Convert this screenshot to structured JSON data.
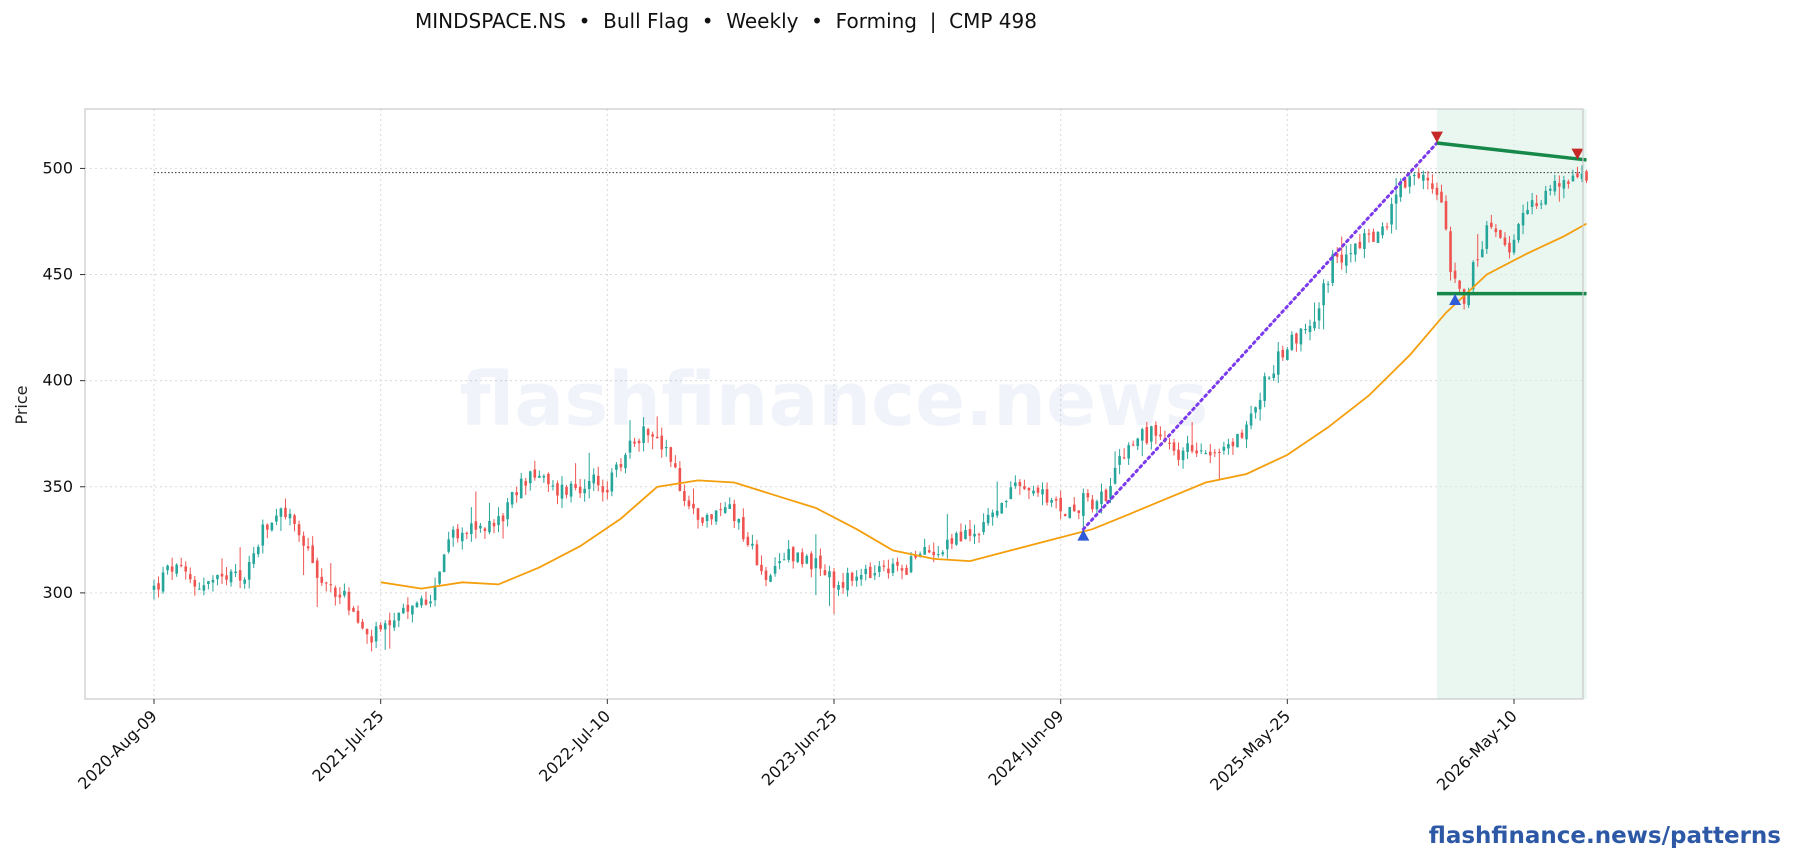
{
  "chart_data": {
    "type": "candlestick",
    "title": "MINDSPACE.NS  •  Bull Flag  •  Weekly  •  Forming  |  CMP 498",
    "ylabel": "Price",
    "xlabel": "",
    "ylim": [
      250,
      528
    ],
    "y_ticks": [
      300,
      350,
      400,
      450,
      500
    ],
    "x_ticks": [
      "2020-Aug-09",
      "2021-Jul-25",
      "2022-Jul-10",
      "2023-Jun-25",
      "2024-Jun-09",
      "2025-May-25",
      "2026-May-10"
    ],
    "x_start": "2020-Aug-09",
    "x_end": "2026-Aug-30",
    "grid": true,
    "watermark": "flashfinance.news",
    "footer": "flashfinance.news/patterns",
    "cmp": 498,
    "price_path": [
      [
        "2020-Aug-09",
        302
      ],
      [
        "2020-Sep-06",
        312
      ],
      [
        "2020-Oct-11",
        304
      ],
      [
        "2020-Nov-22",
        305
      ],
      [
        "2020-Dec-27",
        308
      ],
      [
        "2021-Jan-24",
        328
      ],
      [
        "2021-Feb-28",
        338
      ],
      [
        "2021-Apr-04",
        320
      ],
      [
        "2021-Apr-25",
        305
      ],
      [
        "2021-May-30",
        298
      ],
      [
        "2021-Jul-04",
        278
      ],
      [
        "2021-Jul-25",
        281
      ],
      [
        "2021-Sep-05",
        290
      ],
      [
        "2021-Oct-10",
        300
      ],
      [
        "2021-Nov-07",
        325
      ],
      [
        "2021-Dec-12",
        330
      ],
      [
        "2022-Jan-16",
        332
      ],
      [
        "2022-Feb-06",
        340
      ],
      [
        "2022-Mar-13",
        358
      ],
      [
        "2022-Apr-17",
        348
      ],
      [
        "2022-May-22",
        350
      ],
      [
        "2022-Jun-26",
        352
      ],
      [
        "2022-Jul-10",
        348
      ],
      [
        "2022-Aug-14",
        370
      ],
      [
        "2022-Sep-11",
        378
      ],
      [
        "2022-Oct-16",
        362
      ],
      [
        "2022-Nov-13",
        340
      ],
      [
        "2022-Dec-18",
        335
      ],
      [
        "2023-Jan-15",
        342
      ],
      [
        "2023-Feb-19",
        320
      ],
      [
        "2023-Mar-19",
        305
      ],
      [
        "2023-Apr-16",
        320
      ],
      [
        "2023-May-21",
        315
      ],
      [
        "2023-Jun-25",
        304
      ],
      [
        "2023-Aug-06",
        307
      ],
      [
        "2023-Sep-10",
        310
      ],
      [
        "2023-Oct-15",
        313
      ],
      [
        "2023-Nov-19",
        320
      ],
      [
        "2023-Dec-24",
        325
      ],
      [
        "2024-Jan-28",
        328
      ],
      [
        "2024-Mar-03",
        340
      ],
      [
        "2024-Apr-07",
        350
      ],
      [
        "2024-May-12",
        345
      ],
      [
        "2024-Jun-09",
        338
      ],
      [
        "2024-Jul-14",
        343
      ],
      [
        "2024-Aug-18",
        345
      ],
      [
        "2024-Sep-22",
        370
      ],
      [
        "2024-Oct-27",
        375
      ],
      [
        "2024-Dec-01",
        365
      ],
      [
        "2025-Jan-05",
        370
      ],
      [
        "2025-Feb-09",
        365
      ],
      [
        "2025-Mar-16",
        375
      ],
      [
        "2025-Apr-20",
        398
      ],
      [
        "2025-May-25",
        418
      ],
      [
        "2025-Jun-29",
        425
      ],
      [
        "2025-Aug-03",
        455
      ],
      [
        "2025-Sep-07",
        465
      ],
      [
        "2025-Oct-12",
        468
      ],
      [
        "2025-Nov-16",
        490
      ],
      [
        "2025-Dec-21",
        495
      ],
      [
        "2026-Jan-18",
        488
      ],
      [
        "2026-Feb-01",
        455
      ],
      [
        "2026-Feb-22",
        440
      ],
      [
        "2026-Mar-29",
        470
      ],
      [
        "2026-May-03",
        462
      ],
      [
        "2026-Jun-07",
        485
      ],
      [
        "2026-Jul-12",
        492
      ],
      [
        "2026-Aug-30",
        498
      ]
    ],
    "series": [
      {
        "name": "",
        "kind": "moving-average",
        "color": "#f59e0b",
        "points": [
          [
            "2021-Jul-25",
            305
          ],
          [
            "2021-Sep-26",
            302
          ],
          [
            "2021-Nov-28",
            305
          ],
          [
            "2022-Jan-23",
            304
          ],
          [
            "2022-Mar-27",
            312
          ],
          [
            "2022-May-29",
            322
          ],
          [
            "2022-Jul-31",
            335
          ],
          [
            "2022-Sep-25",
            350
          ],
          [
            "2022-Nov-27",
            353
          ],
          [
            "2023-Jan-22",
            352
          ],
          [
            "2023-Mar-26",
            346
          ],
          [
            "2023-May-28",
            340
          ],
          [
            "2023-Jul-30",
            330
          ],
          [
            "2023-Sep-24",
            320
          ],
          [
            "2023-Nov-26",
            316
          ],
          [
            "2024-Jan-21",
            315
          ],
          [
            "2024-Mar-24",
            320
          ],
          [
            "2024-May-26",
            325
          ],
          [
            "2024-Jul-28",
            330
          ],
          [
            "2024-Sep-22",
            337
          ],
          [
            "2024-Nov-24",
            345
          ],
          [
            "2025-Jan-19",
            352
          ],
          [
            "2025-Mar-23",
            356
          ],
          [
            "2025-May-25",
            365
          ],
          [
            "2025-Jul-27",
            378
          ],
          [
            "2025-Sep-28",
            393
          ],
          [
            "2025-Nov-30",
            412
          ],
          [
            "2026-Jan-25",
            432
          ],
          [
            "2026-Mar-29",
            450
          ],
          [
            "2026-May-31",
            460
          ],
          [
            "2026-Jul-26",
            468
          ],
          [
            "2026-Aug-30",
            474
          ]
        ]
      }
    ],
    "overlays": {
      "flag_zone": {
        "x0": "2026-Jan-11",
        "x1": "2026-Aug-30",
        "color": "#d9f0e3"
      },
      "cmp_line": {
        "y": 498,
        "x0": "2020-Aug-09",
        "x1": "2026-Aug-30"
      },
      "pole": {
        "from": [
          "2024-Jul-14",
          330
        ],
        "to": [
          "2026-Jan-11",
          512
        ],
        "color": "#7c3aed"
      },
      "flag_upper": {
        "from": [
          "2026-Jan-11",
          512
        ],
        "to": [
          "2026-Aug-30",
          504
        ],
        "color": "#15884a"
      },
      "flag_lower": {
        "from": [
          "2026-Jan-11",
          441
        ],
        "to": [
          "2026-Aug-30",
          441
        ],
        "color": "#15884a"
      },
      "markers_down": [
        [
          "2026-Jan-11",
          515
        ],
        [
          "2026-Aug-16",
          507
        ]
      ],
      "markers_up": [
        [
          "2024-Jul-14",
          327
        ],
        [
          "2026-Feb-08",
          438
        ]
      ],
      "colors": {
        "up": "#26a69a",
        "down": "#ef5350",
        "marker_down": "#c62828",
        "marker_up": "#2f5bd6"
      }
    }
  }
}
